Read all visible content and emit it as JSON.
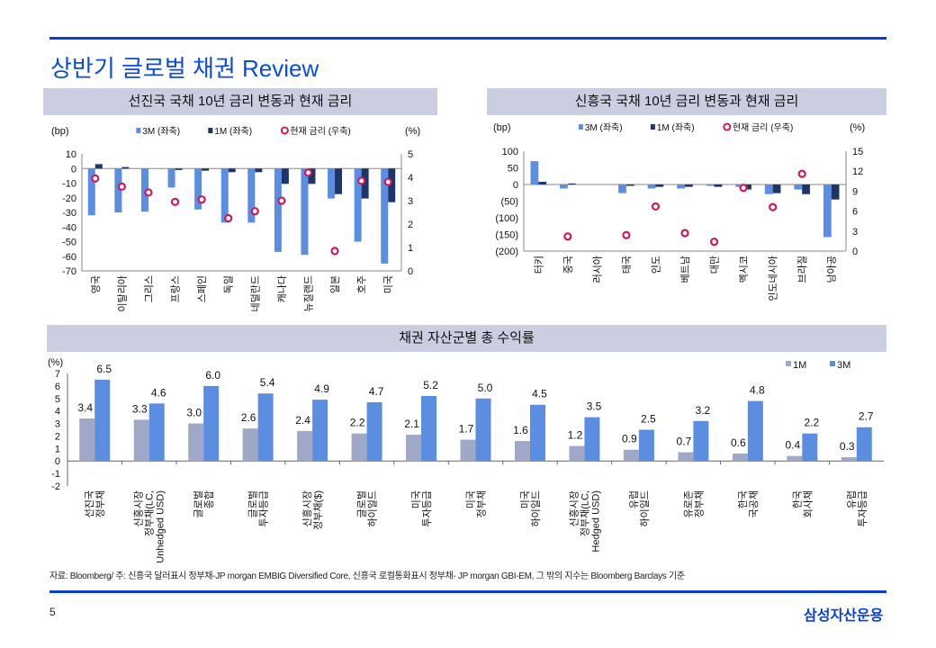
{
  "title": "상반기 글로벌 채권 Review",
  "footnote": "자료: Bloomberg/ 주: 신흥국 달러표시 정부채-JP morgan EMBIG Diversified Core, 신흥국 로컬통화표시 정부채- JP morgan GBI-EM, 그 밖의 지수는 Bloomberg Barclays 기준",
  "page_number": "5",
  "logo": "삼성자산운용",
  "colors": {
    "accent": "#0a3fd6",
    "bar_3m": "#5b8ee0",
    "bar_1m": "#1f3468",
    "bar_1m_bottom": "#a0a8c8",
    "marker": "#d0185f",
    "panel_head": "#cbcde0"
  },
  "chart_data": [
    {
      "type": "bar",
      "title": "선진국 국채 10년 금리 변동과 현재 금리",
      "ylabel": "(bp)",
      "y2label": "(%)",
      "ylim": [
        -70,
        10
      ],
      "yticks": [
        10,
        0,
        -10,
        -20,
        -30,
        -40,
        -50,
        -60,
        -70
      ],
      "ytick_labels": [
        "10",
        "0",
        "-10",
        "-20",
        "-30",
        "-40",
        "-50",
        "-60",
        "-70"
      ],
      "y2lim": [
        0,
        5
      ],
      "y2ticks": [
        "5",
        "4",
        "3",
        "2",
        "1",
        "0"
      ],
      "legend": [
        "3M (좌축)",
        "1M (좌축)",
        "현재 금리 (우축)"
      ],
      "legend_position": "top",
      "categories": [
        "영국",
        "이탈리아",
        "그리스",
        "프랑스",
        "스페인",
        "독일",
        "네덜란드",
        "캐나다",
        "뉴질랜드",
        "일본",
        "호주",
        "미국"
      ],
      "series": [
        {
          "name": "3M (좌축)",
          "values": [
            -32,
            -30,
            -29.5,
            -13,
            -28,
            -37,
            -37,
            -57,
            -59,
            -20.5,
            -50,
            -65
          ]
        },
        {
          "name": "1M (좌축)",
          "values": [
            3,
            1,
            0,
            -1,
            -1.5,
            -2.5,
            -2.5,
            -10.5,
            -10.5,
            -17.5,
            -20.5,
            -23
          ]
        },
        {
          "name": "현재 금리 (우축)",
          "axis": "right",
          "values": [
            3.95,
            3.6,
            3.35,
            2.95,
            3.05,
            2.25,
            2.55,
            3.0,
            4.2,
            0.85,
            3.85,
            3.8
          ]
        }
      ]
    },
    {
      "type": "bar",
      "title": "신흥국 국채 10년 금리 변동과 현재 금리",
      "ylabel": "(bp)",
      "y2label": "(%)",
      "ylim": [
        -200,
        100
      ],
      "yticks": [
        100,
        50,
        0,
        -50,
        -100,
        -150,
        -200
      ],
      "ytick_labels": [
        "100",
        "50",
        "0",
        "(50)",
        "(100)",
        "(150)",
        "(200)"
      ],
      "y2lim": [
        0,
        15
      ],
      "y2ticks": [
        "15",
        "12",
        "9",
        "6",
        "3",
        "0"
      ],
      "legend": [
        "3M (좌축)",
        "1M (좌축)",
        "현재 금리 (우축)"
      ],
      "legend_position": "top",
      "categories": [
        "터키",
        "중국",
        "러시아",
        "태국",
        "인도",
        "베트남",
        "대만",
        "멕시코",
        "인도네시아",
        "브라질",
        "남아공"
      ],
      "series": [
        {
          "name": "3M (좌축)",
          "values": [
            70,
            -12,
            0,
            -26,
            -12,
            -12,
            -4,
            -7,
            -29,
            -15,
            -158
          ]
        },
        {
          "name": "1M (좌축)",
          "values": [
            8,
            3,
            0,
            -4,
            -7,
            -7,
            -7,
            -15,
            -26,
            -29,
            -45
          ]
        },
        {
          "name": "현재 금리 (우축)",
          "axis": "right",
          "values": [
            null,
            2.2,
            null,
            2.4,
            6.7,
            2.7,
            1.4,
            9.5,
            6.6,
            11.6,
            null
          ]
        }
      ]
    },
    {
      "type": "bar",
      "title": "채권 자산군별 총 수익률",
      "ylabel": "(%)",
      "ylim": [
        -2,
        7
      ],
      "yticks": [
        7,
        6,
        5,
        4,
        3,
        2,
        1,
        0,
        -1,
        -2
      ],
      "ytick_labels": [
        "7",
        "6",
        "5",
        "4",
        "3",
        "2",
        "1",
        "0",
        "-1",
        "-2"
      ],
      "legend": [
        "1M",
        "3M"
      ],
      "legend_position": "top-right",
      "categories": [
        [
          "선진국",
          "정부채"
        ],
        [
          "신흥시장",
          "정부채(LC,",
          "Unhedged USD)"
        ],
        [
          "글로벌",
          "종합"
        ],
        [
          "글로벌",
          "투자등급"
        ],
        [
          "신흥시장",
          "정부채($)"
        ],
        [
          "글로벌",
          "하이일드"
        ],
        [
          "미국",
          "투자등급"
        ],
        [
          "미국",
          "정부채"
        ],
        [
          "미국",
          "하이일드"
        ],
        [
          "신흥시장",
          "정부채(LC,",
          "Hedged USD)"
        ],
        [
          "유럽",
          "하이일드"
        ],
        [
          "유로존",
          "정부채"
        ],
        [
          "한국",
          "국공채"
        ],
        [
          "한국",
          "회사채"
        ],
        [
          "유럽",
          "투자등급"
        ]
      ],
      "series": [
        {
          "name": "1M",
          "values": [
            3.4,
            3.3,
            3.0,
            2.6,
            2.4,
            2.2,
            2.1,
            1.7,
            1.6,
            1.2,
            0.9,
            0.7,
            0.6,
            0.4,
            0.3
          ],
          "labels": [
            "3.4",
            "3.3",
            "3.0",
            "2.6",
            "2.4",
            "2.2",
            "2.1",
            "1.7",
            "1.6",
            "1.2",
            "0.9",
            "0.7",
            "0.6",
            "0.4",
            "0.3"
          ]
        },
        {
          "name": "3M",
          "values": [
            6.5,
            4.6,
            6.0,
            5.4,
            4.9,
            4.7,
            5.2,
            5.0,
            4.5,
            3.5,
            2.5,
            3.2,
            4.8,
            2.2,
            2.7
          ],
          "labels": [
            "6.5",
            "4.6",
            "6.0",
            "5.4",
            "4.9",
            "4.7",
            "5.2",
            "5.0",
            "4.5",
            "3.5",
            "2.5",
            "3.2",
            "4.8",
            "2.2",
            "2.7"
          ]
        }
      ]
    }
  ]
}
